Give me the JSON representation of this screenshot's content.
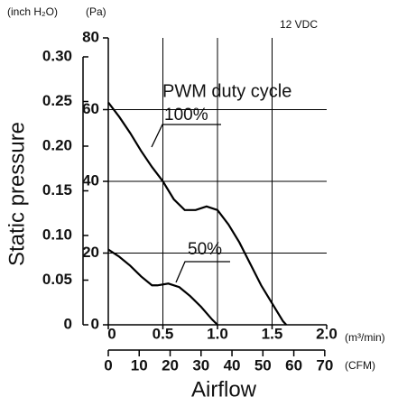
{
  "chart_data": {
    "type": "line",
    "title": "12 VDC",
    "legend_title": "PWM duty cycle",
    "y_label": "Static pressure",
    "x_label": "Airflow",
    "y_unit": "(Pa)",
    "y2_unit": "(inch H₂O)",
    "x_unit": "(m³/min)",
    "x2_unit": "(CFM)",
    "xlim": [
      0,
      2.0
    ],
    "xticks": [
      0,
      0.5,
      {
        "value": 1.0,
        "label": "1.0"
      },
      1.5,
      {
        "value": 2.0,
        "label": "2.0"
      }
    ],
    "x2lim": [
      0,
      70.63
    ],
    "x2ticks": [
      0,
      10,
      20,
      30,
      40,
      50,
      60,
      70
    ],
    "ylim": [
      0,
      80
    ],
    "yticks": [
      0,
      20,
      40,
      60,
      80
    ],
    "y2lim": [
      0,
      0.3212
    ],
    "y2ticks": [
      0,
      0.05,
      {
        "value": 0.1,
        "label": "0.10"
      },
      0.15,
      {
        "value": 0.2,
        "label": "0.20"
      },
      0.25,
      {
        "value": 0.3,
        "label": "0.30"
      }
    ],
    "grid": true,
    "series": [
      {
        "name": "100%",
        "color": "#000000",
        "x": [
          0,
          0.1,
          0.2,
          0.3,
          0.4,
          0.5,
          0.6,
          0.7,
          0.8,
          0.9,
          1.0,
          1.1,
          1.2,
          1.3,
          1.4,
          1.5,
          1.6,
          1.63
        ],
        "values": [
          62,
          58,
          53.5,
          48.5,
          44,
          40,
          35,
          32,
          32,
          33,
          32,
          28,
          23,
          17,
          11,
          6,
          1,
          0
        ]
      },
      {
        "name": "50%",
        "color": "#000000",
        "x": [
          0,
          0.1,
          0.2,
          0.3,
          0.4,
          0.45,
          0.55,
          0.65,
          0.75,
          0.85,
          0.95,
          1.0
        ],
        "values": [
          21,
          19,
          16.5,
          13.5,
          11,
          11,
          11.5,
          10.5,
          8,
          5,
          1.5,
          0
        ]
      }
    ]
  }
}
